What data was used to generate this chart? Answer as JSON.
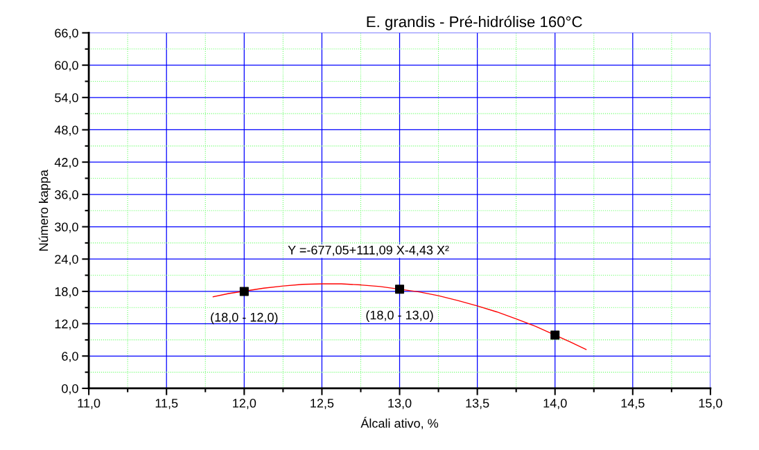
{
  "chart_data": {
    "type": "scatter",
    "title": "E. grandis - Pré-hidrólise 160°C",
    "xlabel": "Álcali ativo, %",
    "ylabel": "Número kappa",
    "series": [
      {
        "color": "#000000",
        "marker": "square",
        "x": [
          12.0,
          13.0,
          14.0
        ],
        "values": [
          18.0,
          18.4,
          9.9
        ]
      },
      {
        "type": "line",
        "color": "#ff0000",
        "line_style": "solid",
        "x": [
          11.8,
          11.9,
          12.125,
          12.25,
          12.375,
          12.5,
          12.625,
          12.75,
          12.875,
          13.125,
          13.25,
          13.375,
          13.5,
          13.625,
          13.75,
          13.875,
          14.1,
          14.2
        ],
        "values": [
          17.0,
          17.6,
          18.6,
          19.0,
          19.3,
          19.4,
          19.4,
          19.2,
          18.9,
          17.9,
          17.2,
          16.3,
          15.3,
          14.2,
          12.9,
          11.5,
          8.6,
          7.2
        ]
      }
    ],
    "annotations": [
      "Y =-677,05+111,09 X-4,43 X²",
      {
        "text": "(18,0 - 12,0)",
        "x": 12.0,
        "y": 18.0
      },
      {
        "text": "(18,0 - 13,0)",
        "x": 13.0,
        "y": 18.4
      }
    ],
    "xlim": [
      11.0,
      15.0
    ],
    "ylim": [
      0.0,
      66.0
    ],
    "xticks": [
      {
        "value": 11.0,
        "label": "11,0"
      },
      {
        "value": 11.25,
        "label": null
      },
      {
        "value": 11.5,
        "label": "11,5"
      },
      {
        "value": 11.75,
        "label": null
      },
      {
        "value": 12.0,
        "label": "12,0"
      },
      {
        "value": 12.25,
        "label": null
      },
      {
        "value": 12.5,
        "label": "12,5"
      },
      {
        "value": 12.75,
        "label": null
      },
      {
        "value": 13.0,
        "label": "13,0"
      },
      {
        "value": 13.25,
        "label": null
      },
      {
        "value": 13.5,
        "label": "13,5"
      },
      {
        "value": 13.75,
        "label": null
      },
      {
        "value": 14.0,
        "label": "14,0"
      },
      {
        "value": 14.25,
        "label": null
      },
      {
        "value": 14.5,
        "label": "14,5"
      },
      {
        "value": 14.75,
        "label": null
      },
      {
        "value": 15.0,
        "label": "15,0"
      }
    ],
    "yticks": [
      {
        "value": 0.0,
        "label": "0,0"
      },
      {
        "value": 3.0,
        "label": null
      },
      {
        "value": 6.0,
        "label": "6,0"
      },
      {
        "value": 9.0,
        "label": null
      },
      {
        "value": 12.0,
        "label": "12,0"
      },
      {
        "value": 15.0,
        "label": null
      },
      {
        "value": 18.0,
        "label": "18,0"
      },
      {
        "value": 21.0,
        "label": null
      },
      {
        "value": 24.0,
        "label": "24,0"
      },
      {
        "value": 27.0,
        "label": null
      },
      {
        "value": 30.0,
        "label": "30,0"
      },
      {
        "value": 33.0,
        "label": null
      },
      {
        "value": 36.0,
        "label": "36,0"
      },
      {
        "value": 39.0,
        "label": null
      },
      {
        "value": 42.0,
        "label": "42,0"
      },
      {
        "value": 45.0,
        "label": null
      },
      {
        "value": 48.0,
        "label": "48,0"
      },
      {
        "value": 51.0,
        "label": null
      },
      {
        "value": 54.0,
        "label": "54,0"
      },
      {
        "value": 57.0,
        "label": null
      },
      {
        "value": 60.0,
        "label": "60,0"
      },
      {
        "value": 63.0,
        "label": null
      },
      {
        "value": 66.0,
        "label": "66,0"
      }
    ],
    "grid": true
  }
}
